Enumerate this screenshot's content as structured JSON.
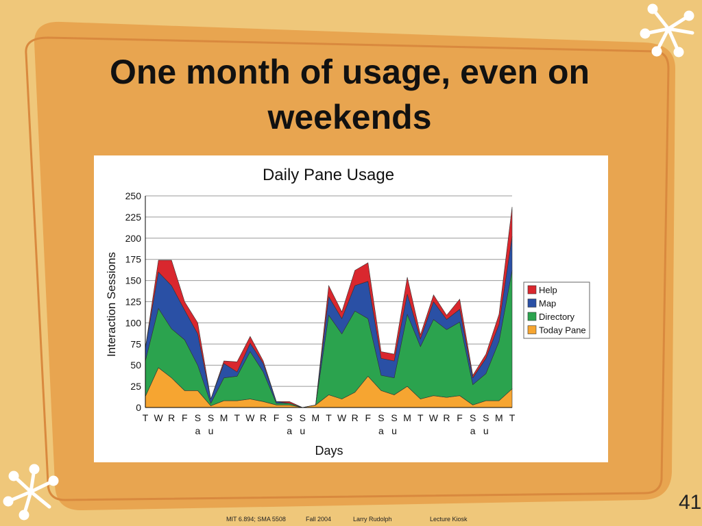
{
  "slide": {
    "title": "One month of usage, even on weekends",
    "footer": {
      "course": "MIT 6.894; SMA 5508",
      "term": "Fall 2004",
      "author": "Larry Rudolph",
      "lecture": "Lecture   Kiosk"
    },
    "page_number": "41"
  },
  "colors": {
    "background": "#EFC77A",
    "panel": "#E8A550",
    "panel_outline": "#D9893E",
    "star": "#FFFFFF",
    "today_pane": "#F6A531",
    "directory": "#2BA34E",
    "map": "#2A50A5",
    "help": "#D9272E"
  },
  "chart_data": {
    "type": "area",
    "stacked": true,
    "title": "Daily Pane Usage",
    "xlabel": "Days",
    "ylabel": "Interaction Sessions",
    "ylim": [
      0,
      250
    ],
    "yticks": [
      0,
      25,
      50,
      75,
      100,
      125,
      150,
      175,
      200,
      225,
      250
    ],
    "grid": true,
    "legend_position": "right",
    "categories": [
      "T",
      "W",
      "R",
      "F",
      "Sa",
      "Su",
      "M",
      "T",
      "W",
      "R",
      "F",
      "Sa",
      "Su",
      "M",
      "T",
      "W",
      "R",
      "F",
      "Sa",
      "Su",
      "M",
      "T",
      "W",
      "R",
      "F",
      "Sa",
      "Su",
      "M",
      "T"
    ],
    "series": [
      {
        "name": "Today Pane",
        "color": "#F6A531",
        "values": [
          13,
          47,
          35,
          20,
          20,
          2,
          8,
          8,
          10,
          7,
          3,
          3,
          0,
          3,
          15,
          10,
          18,
          37,
          20,
          15,
          25,
          10,
          14,
          12,
          14,
          3,
          8,
          8,
          22
        ]
      },
      {
        "name": "Directory",
        "color": "#2BA34E",
        "values": [
          42,
          70,
          58,
          60,
          30,
          3,
          27,
          29,
          56,
          35,
          2,
          2,
          0,
          0,
          94,
          77,
          96,
          68,
          18,
          20,
          85,
          62,
          90,
          80,
          87,
          24,
          32,
          70,
          140
        ]
      },
      {
        "name": "Map",
        "color": "#2A50A5",
        "values": [
          15,
          43,
          51,
          35,
          37,
          5,
          17,
          5,
          10,
          10,
          2,
          0,
          0,
          0,
          22,
          18,
          30,
          44,
          20,
          20,
          24,
          9,
          21,
          12,
          15,
          8,
          18,
          20,
          40
        ]
      },
      {
        "name": "Help",
        "color": "#D9272E",
        "values": [
          0,
          14,
          30,
          10,
          13,
          0,
          3,
          12,
          8,
          3,
          0,
          2,
          0,
          0,
          13,
          8,
          18,
          22,
          8,
          8,
          20,
          5,
          8,
          5,
          12,
          3,
          5,
          12,
          35
        ]
      }
    ]
  }
}
